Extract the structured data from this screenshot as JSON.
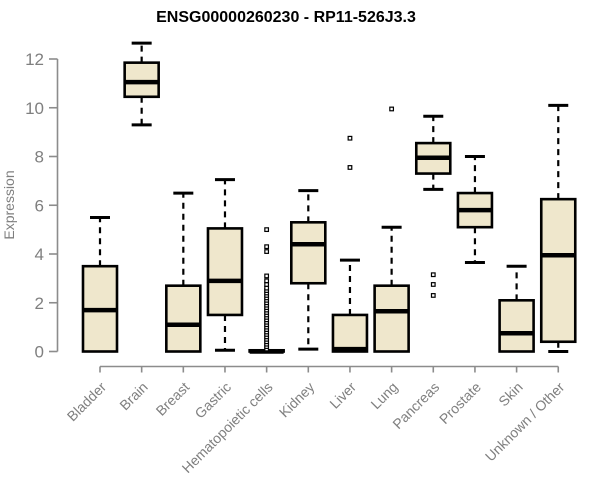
{
  "chart_data": {
    "type": "boxplot",
    "title": "ENSG00000260230 - RP11-526J3.3",
    "ylabel": "Expression",
    "ylim": [
      0,
      12.7
    ],
    "yticks": [
      0,
      2,
      4,
      6,
      8,
      10,
      12
    ],
    "grid": "off",
    "legend": "none",
    "categories": [
      "Bladder",
      "Brain",
      "Breast",
      "Gastric",
      "Hematopoietic cells",
      "Kidney",
      "Liver",
      "Lung",
      "Pancreas",
      "Prostate",
      "Skin",
      "Unknown / Other"
    ],
    "series": [
      {
        "name": "Bladder",
        "low": 0,
        "q1": 0,
        "median": 1.7,
        "q3": 3.5,
        "high": 5.5,
        "outliers": []
      },
      {
        "name": "Brain",
        "low": 9.3,
        "q1": 10.45,
        "median": 11.05,
        "q3": 11.85,
        "high": 12.65,
        "outliers": []
      },
      {
        "name": "Breast",
        "low": 0,
        "q1": 0,
        "median": 1.1,
        "q3": 2.7,
        "high": 6.5,
        "outliers": []
      },
      {
        "name": "Gastric",
        "low": 0.05,
        "q1": 1.5,
        "median": 2.9,
        "q3": 5.05,
        "high": 7.05,
        "outliers": []
      },
      {
        "name": "Hematopoietic cells",
        "low": 0,
        "q1": 0,
        "median": 0,
        "q3": 0.05,
        "high": 0.05,
        "outliers": [
          0.1,
          0.2,
          0.3,
          0.4,
          0.5,
          0.6,
          0.7,
          0.8,
          0.9,
          1.0,
          1.1,
          1.2,
          1.3,
          1.4,
          1.5,
          1.6,
          1.7,
          1.8,
          1.9,
          2.0,
          2.1,
          2.2,
          2.3,
          2.4,
          2.5,
          2.6,
          2.75,
          2.9,
          3.1,
          4.1,
          4.3,
          5.0
        ]
      },
      {
        "name": "Kidney",
        "low": 0.1,
        "q1": 2.8,
        "median": 4.4,
        "q3": 5.3,
        "high": 6.6,
        "outliers": []
      },
      {
        "name": "Liver",
        "low": 0,
        "q1": 0,
        "median": 0.1,
        "q3": 1.5,
        "high": 3.75,
        "outliers": [
          7.55,
          8.75
        ]
      },
      {
        "name": "Lung",
        "low": 0,
        "q1": 0,
        "median": 1.65,
        "q3": 2.7,
        "high": 5.1,
        "outliers": [
          9.95
        ]
      },
      {
        "name": "Pancreas",
        "low": 6.65,
        "q1": 7.3,
        "median": 7.95,
        "q3": 8.55,
        "high": 9.65,
        "outliers": [
          3.15,
          2.75,
          2.3
        ]
      },
      {
        "name": "Prostate",
        "low": 3.65,
        "q1": 5.1,
        "median": 5.8,
        "q3": 6.5,
        "high": 8.0,
        "outliers": []
      },
      {
        "name": "Skin",
        "low": 0,
        "q1": 0,
        "median": 0.75,
        "q3": 2.1,
        "high": 3.5,
        "outliers": []
      },
      {
        "name": "Unknown / Other",
        "low": 0,
        "q1": 0.4,
        "median": 3.95,
        "q3": 6.25,
        "high": 10.1,
        "outliers": []
      }
    ],
    "colors": {
      "box_fill": "#EFE7CC",
      "box_stroke": "#000000",
      "median": "#000000",
      "whisker": "#000000",
      "axis_line": "#8c8c8c",
      "axis_text": "#7f7f7f",
      "title_text": "#000000",
      "background": "#ffffff",
      "outlier_fill": "#ffffff"
    }
  }
}
